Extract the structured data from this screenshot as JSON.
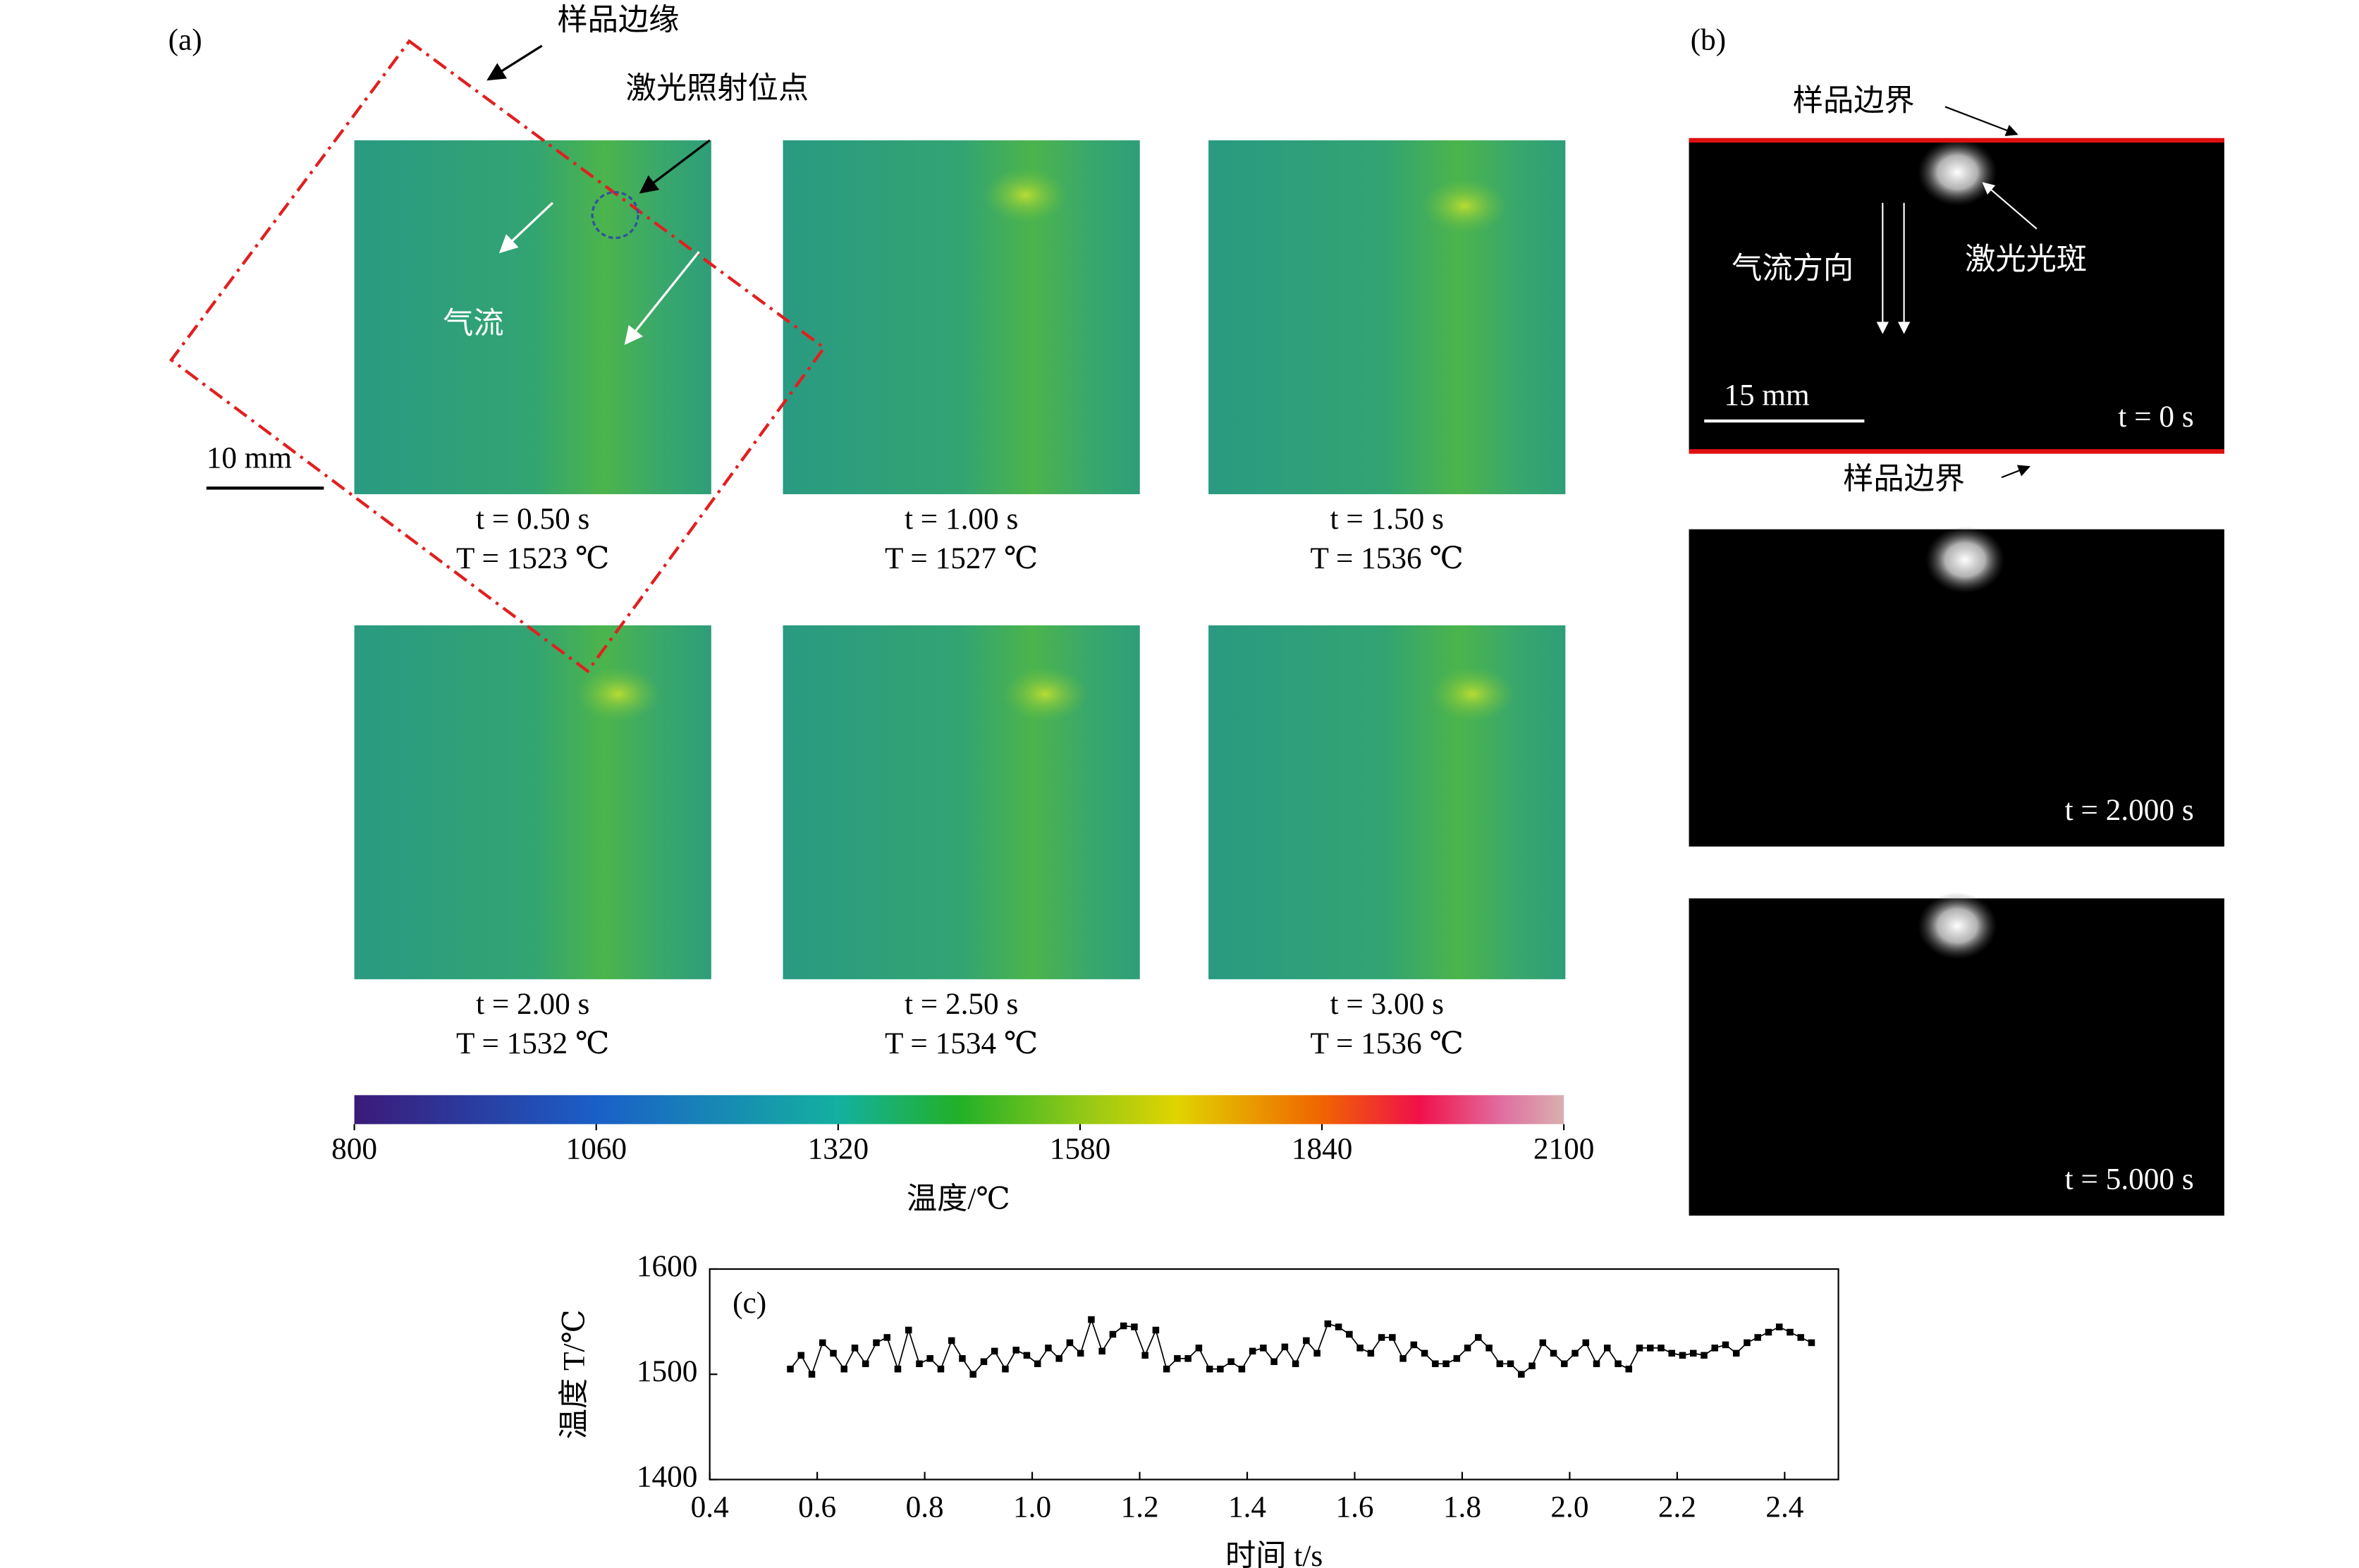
{
  "panel_a": {
    "label": "(a)",
    "sample_edge": "样品边缘",
    "laser_spot": "激光照射位点",
    "airflow": "气流",
    "scale_bar": "10 mm",
    "frames": [
      {
        "time": "t = 0.50 s",
        "temperature": "T = 1523 ℃"
      },
      {
        "time": "t = 1.00 s",
        "temperature": "T = 1527 ℃"
      },
      {
        "time": "t = 1.50 s",
        "temperature": "T = 1536 ℃"
      },
      {
        "time": "t = 2.00 s",
        "temperature": "T = 1532 ℃"
      },
      {
        "time": "t = 2.50 s",
        "temperature": "T = 1534 ℃"
      },
      {
        "time": "t = 3.00 s",
        "temperature": "T = 1536 ℃"
      }
    ],
    "colorbar": {
      "label": "温度/℃",
      "lim": [
        800,
        2100
      ],
      "ticks": [
        800,
        1060,
        1320,
        1580,
        1840,
        2100
      ]
    }
  },
  "panel_b": {
    "label": "(b)",
    "boundary_top": "样品边界",
    "laser_spot": "激光光斑",
    "airflow": "气流方向",
    "scale_bar": "15 mm",
    "boundary_bottom": "样品边界",
    "frames": [
      "t = 0 s",
      "t = 2.000 s",
      "t = 5.000 s"
    ]
  },
  "chart_data": {
    "type": "line",
    "panel_label": "(c)",
    "x_label": "时间 t/s",
    "y_label": "温度 T/℃",
    "x": [
      0.55,
      0.57,
      0.59,
      0.61,
      0.63,
      0.65,
      0.67,
      0.69,
      0.71,
      0.73,
      0.75,
      0.77,
      0.79,
      0.81,
      0.83,
      0.85,
      0.87,
      0.89,
      0.91,
      0.93,
      0.95,
      0.97,
      0.99,
      1.01,
      1.03,
      1.05,
      1.07,
      1.09,
      1.11,
      1.13,
      1.15,
      1.17,
      1.19,
      1.21,
      1.23,
      1.25,
      1.27,
      1.29,
      1.31,
      1.33,
      1.35,
      1.37,
      1.39,
      1.41,
      1.43,
      1.45,
      1.47,
      1.49,
      1.51,
      1.53,
      1.55,
      1.57,
      1.59,
      1.61,
      1.63,
      1.65,
      1.67,
      1.69,
      1.71,
      1.73,
      1.75,
      1.77,
      1.79,
      1.81,
      1.83,
      1.85,
      1.87,
      1.89,
      1.91,
      1.93,
      1.95,
      1.97,
      1.99,
      2.01,
      2.03,
      2.05,
      2.07,
      2.09,
      2.11,
      2.13,
      2.15,
      2.17,
      2.19,
      2.21,
      2.23,
      2.25,
      2.27,
      2.29,
      2.31,
      2.33,
      2.35,
      2.37,
      2.39,
      2.41,
      2.43,
      2.45
    ],
    "series": [
      {
        "color": "#000000",
        "values": [
          1505,
          1518,
          1500,
          1530,
          1520,
          1505,
          1525,
          1510,
          1530,
          1535,
          1505,
          1542,
          1510,
          1515,
          1505,
          1532,
          1515,
          1500,
          1512,
          1522,
          1505,
          1523,
          1518,
          1510,
          1525,
          1515,
          1530,
          1520,
          1552,
          1522,
          1538,
          1546,
          1545,
          1518,
          1542,
          1505,
          1515,
          1515,
          1525,
          1505,
          1505,
          1512,
          1505,
          1522,
          1525,
          1512,
          1526,
          1510,
          1532,
          1520,
          1548,
          1545,
          1538,
          1525,
          1520,
          1535,
          1535,
          1515,
          1528,
          1520,
          1510,
          1510,
          1515,
          1525,
          1535,
          1525,
          1510,
          1510,
          1500,
          1508,
          1530,
          1520,
          1510,
          1520,
          1530,
          1510,
          1525,
          1510,
          1505,
          1525,
          1525,
          1525,
          1520,
          1518,
          1520,
          1518,
          1525,
          1528,
          1520,
          1530,
          1535,
          1540,
          1545,
          1540,
          1535,
          1530
        ]
      }
    ],
    "xlim": [
      0.4,
      2.5
    ],
    "ylim": [
      1400,
      1600
    ],
    "xticks": [
      0.4,
      0.6,
      0.8,
      {
        "value": 1,
        "label": "1.0"
      },
      1.2,
      1.4,
      1.6,
      1.8,
      {
        "value": 2,
        "label": "2.0"
      },
      2.2,
      2.4
    ],
    "yticks": [
      1400,
      1500,
      1600
    ]
  }
}
